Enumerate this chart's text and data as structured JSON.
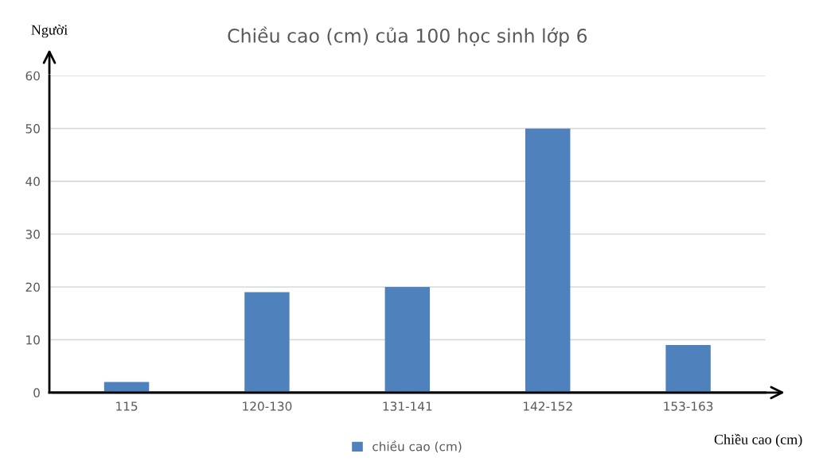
{
  "chart_data": {
    "type": "bar",
    "title": "Chiều cao (cm) của 100 học sinh lớp 6",
    "xlabel": "Chiều cao (cm)",
    "ylabel": "Người",
    "categories": [
      "115",
      "120-130",
      "131-141",
      "142-152",
      "153-163"
    ],
    "series": [
      {
        "name": "chiều cao (cm)",
        "color": "#4f81bd",
        "values": [
          2,
          19,
          20,
          50,
          9
        ]
      }
    ],
    "ylim": [
      0,
      60
    ],
    "yticks": [
      0,
      10,
      20,
      30,
      40,
      50,
      60
    ],
    "grid": "y",
    "legend": "bottom"
  }
}
